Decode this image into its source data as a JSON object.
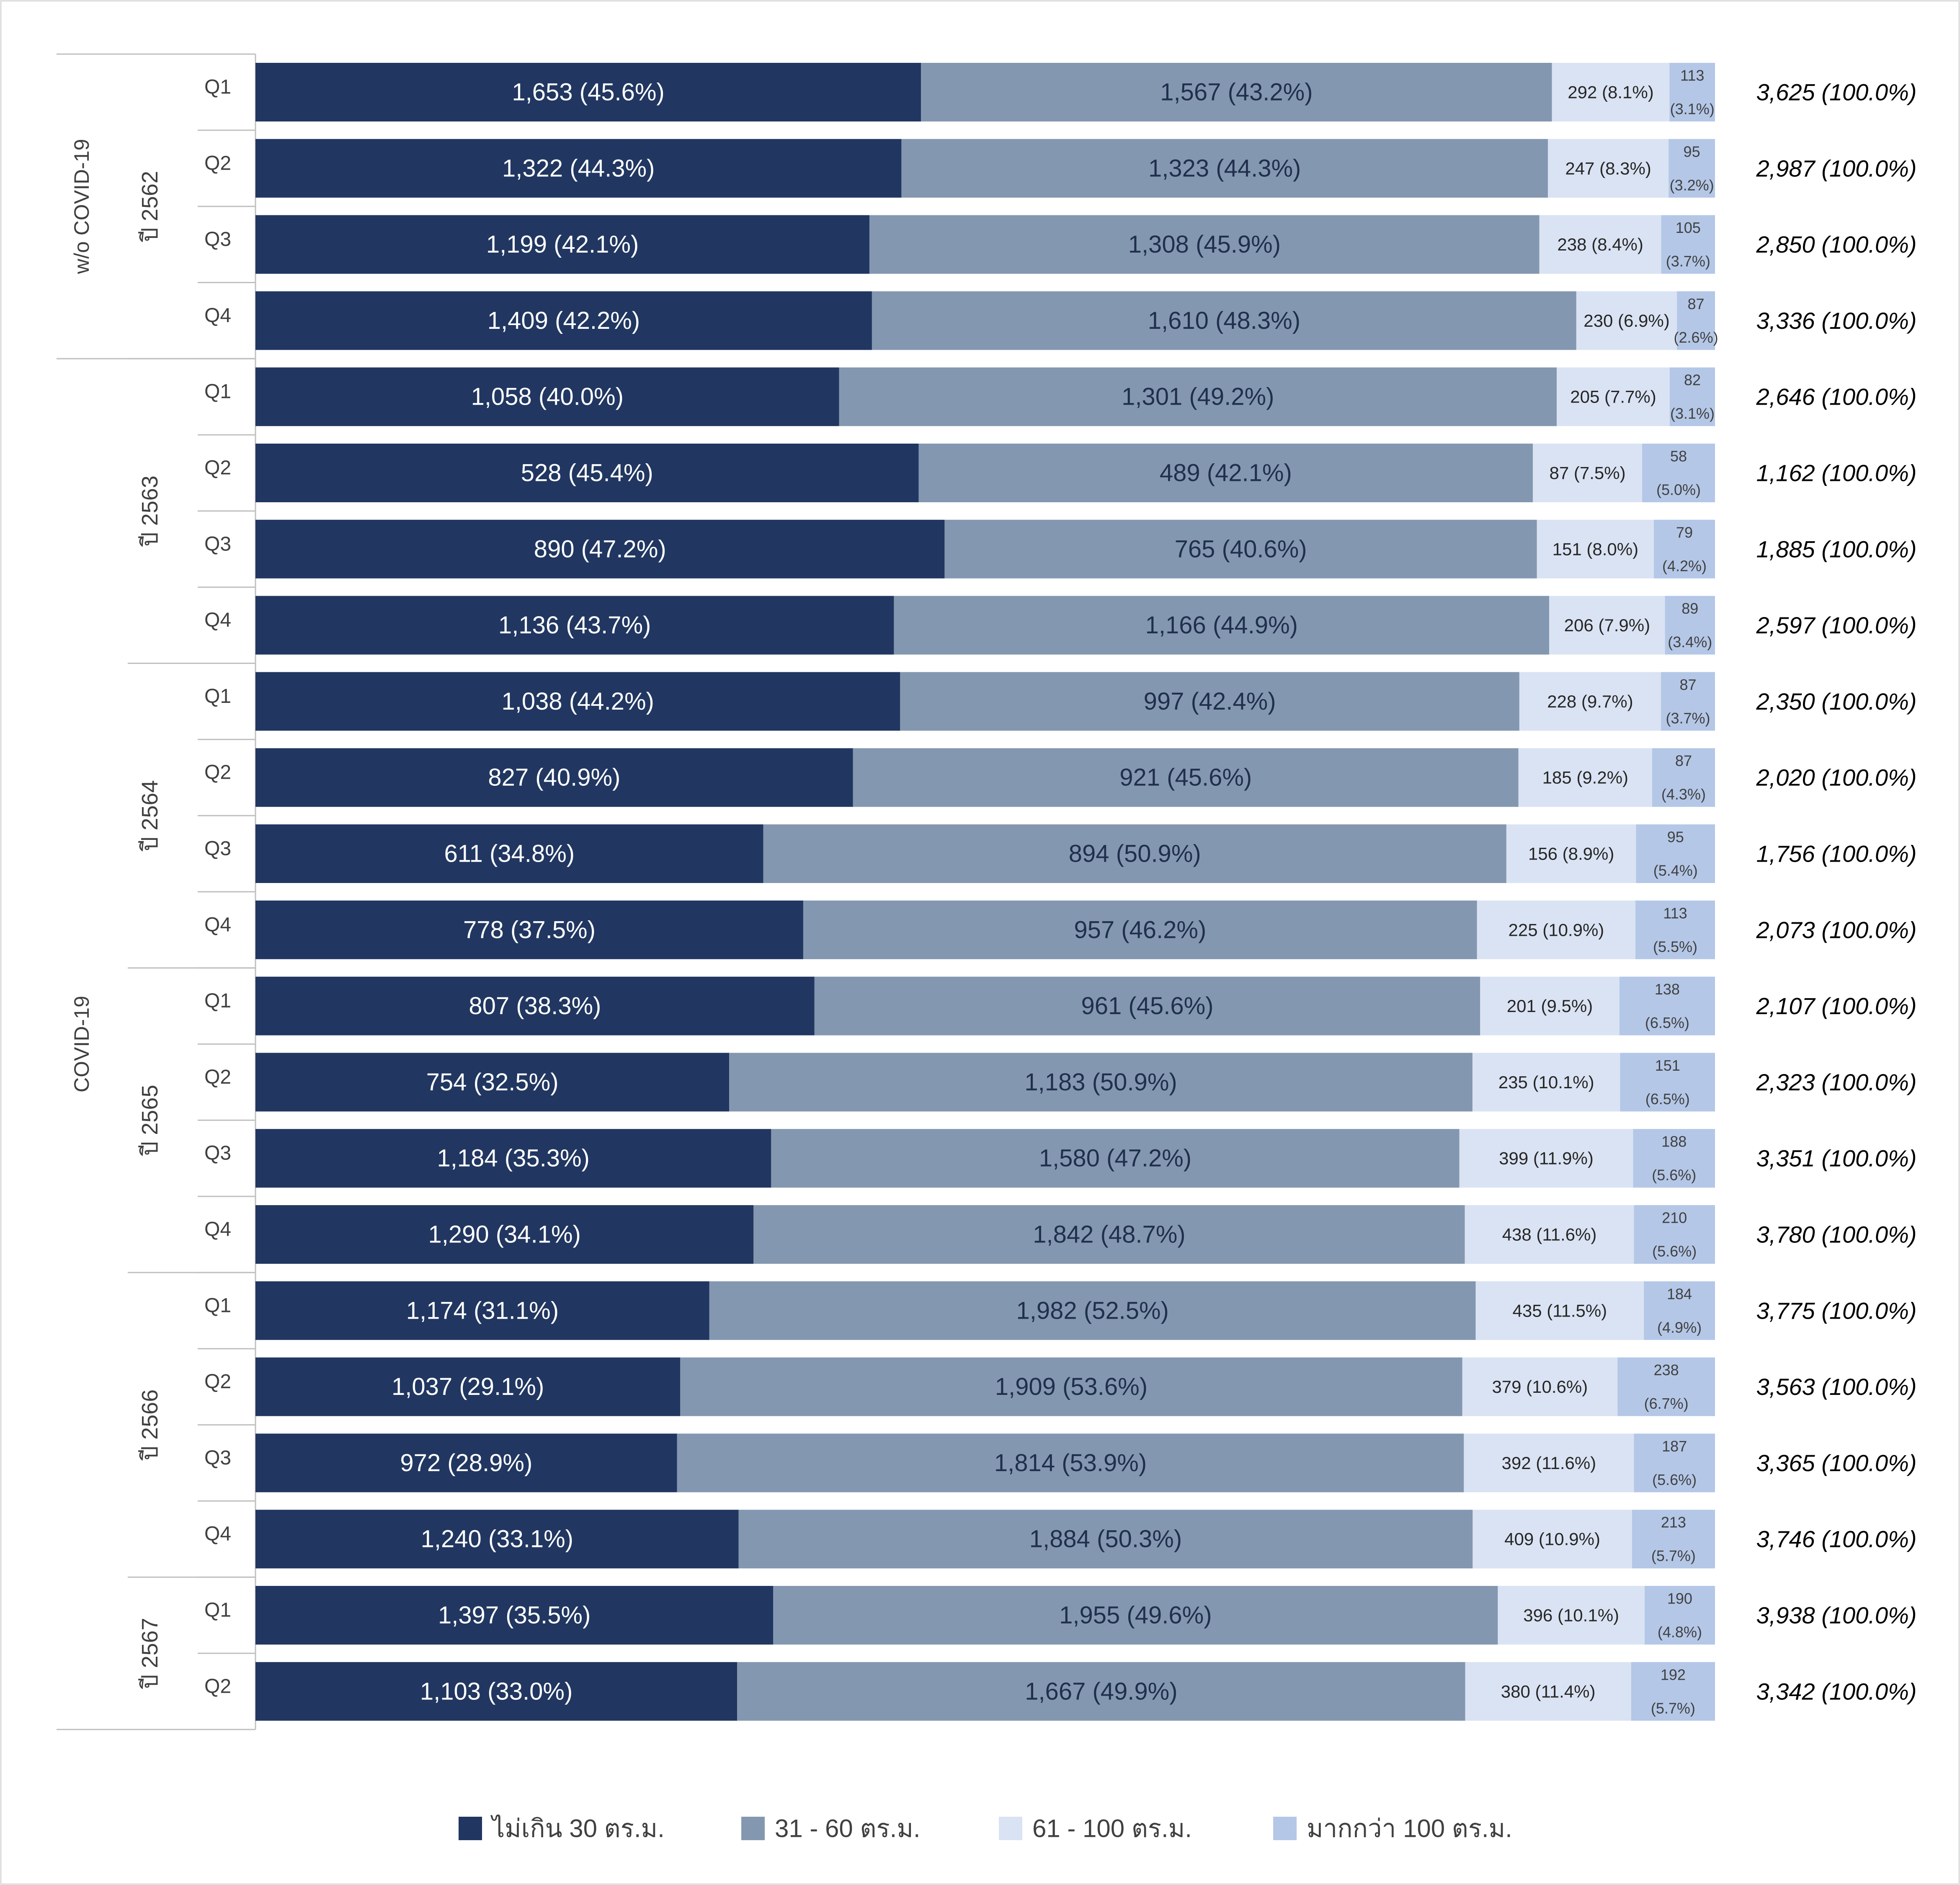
{
  "chart_data": {
    "type": "bar",
    "orientation": "horizontal",
    "stacked": true,
    "title": "",
    "xlabel": "",
    "ylabel": "",
    "grid": false,
    "legend_position": "bottom",
    "groups": [
      {
        "label": "w/o COVID-19",
        "rows": 4
      },
      {
        "label": "COVID-19",
        "rows": 18
      }
    ],
    "years": [
      {
        "label": "ปี 2562",
        "rows": 4
      },
      {
        "label": "ปี 2563",
        "rows": 4
      },
      {
        "label": "ปี 2564",
        "rows": 4
      },
      {
        "label": "ปี 2565",
        "rows": 4
      },
      {
        "label": "ปี 2566",
        "rows": 4
      },
      {
        "label": "ปี 2567",
        "rows": 2
      }
    ],
    "categories": [
      "Q1",
      "Q2",
      "Q3",
      "Q4",
      "Q1",
      "Q2",
      "Q3",
      "Q4",
      "Q1",
      "Q2",
      "Q3",
      "Q4",
      "Q1",
      "Q2",
      "Q3",
      "Q4",
      "Q1",
      "Q2",
      "Q3",
      "Q4",
      "Q1",
      "Q2"
    ],
    "series": [
      {
        "name": "ไม่เกิน 30 ตร.ม.",
        "color": "#213761",
        "values": [
          1653,
          1322,
          1199,
          1409,
          1058,
          528,
          890,
          1136,
          1038,
          827,
          611,
          778,
          807,
          754,
          1184,
          1290,
          1174,
          1037,
          972,
          1240,
          1397,
          1103
        ],
        "labels": [
          "1,653  (45.6%)",
          "1,322  (44.3%)",
          "1,199  (42.1%)",
          "1,409  (42.2%)",
          "1,058  (40.0%)",
          "528  (45.4%)",
          "890  (47.2%)",
          "1,136  (43.7%)",
          "1,038  (44.2%)",
          "827  (40.9%)",
          "611  (34.8%)",
          "778  (37.5%)",
          "807  (38.3%)",
          "754  (32.5%)",
          "1,184  (35.3%)",
          "1,290  (34.1%)",
          "1,174  (31.1%)",
          "1,037  (29.1%)",
          "972  (28.9%)",
          "1,240  (33.1%)",
          "1,397  (35.5%)",
          "1,103  (33.0%)"
        ]
      },
      {
        "name": "31 - 60 ตร.ม.",
        "color": "#8497b0",
        "values": [
          1567,
          1323,
          1308,
          1610,
          1301,
          489,
          765,
          1166,
          997,
          921,
          894,
          957,
          961,
          1183,
          1580,
          1842,
          1982,
          1909,
          1814,
          1884,
          1955,
          1667
        ],
        "labels": [
          "1,567  (43.2%)",
          "1,323  (44.3%)",
          "1,308  (45.9%)",
          "1,610  (48.3%)",
          "1,301  (49.2%)",
          "489  (42.1%)",
          "765  (40.6%)",
          "1,166  (44.9%)",
          "997  (42.4%)",
          "921  (45.6%)",
          "894  (50.9%)",
          "957  (46.2%)",
          "961  (45.6%)",
          "1,183  (50.9%)",
          "1,580  (47.2%)",
          "1,842  (48.7%)",
          "1,982  (52.5%)",
          "1,909  (53.6%)",
          "1,814  (53.9%)",
          "1,884  (50.3%)",
          "1,955  (49.6%)",
          "1,667  (49.9%)"
        ]
      },
      {
        "name": "61 - 100 ตร.ม.",
        "color": "#dae3f3",
        "values": [
          292,
          247,
          238,
          230,
          205,
          87,
          151,
          206,
          228,
          185,
          156,
          225,
          201,
          235,
          399,
          438,
          435,
          379,
          392,
          409,
          396,
          380
        ],
        "labels": [
          "292  (8.1%)",
          "247  (8.3%)",
          "238  (8.4%)",
          "230  (6.9%)",
          "205  (7.7%)",
          "87  (7.5%)",
          "151  (8.0%)",
          "206  (7.9%)",
          "228  (9.7%)",
          "185  (9.2%)",
          "156  (8.9%)",
          "225  (10.9%)",
          "201  (9.5%)",
          "235  (10.1%)",
          "399  (11.9%)",
          "438  (11.6%)",
          "435  (11.5%)",
          "379  (10.6%)",
          "392  (11.6%)",
          "409  (10.9%)",
          "396  (10.1%)",
          "380  (11.4%)"
        ]
      },
      {
        "name": "มากกว่า 100  ตร.ม.",
        "color": "#b4c7e7",
        "values": [
          113,
          95,
          105,
          87,
          82,
          58,
          79,
          89,
          87,
          87,
          95,
          113,
          138,
          151,
          188,
          210,
          184,
          238,
          187,
          213,
          190,
          192
        ],
        "labels": [
          "113",
          "95",
          "105",
          "87",
          "82",
          "58",
          "79",
          "89",
          "87",
          "87",
          "95",
          "113",
          "138",
          "151",
          "188",
          "210",
          "184",
          "238",
          "187",
          "213",
          "190",
          "192"
        ],
        "pct": [
          "(3.1%)",
          "(3.2%)",
          "(3.7%)",
          "(2.6%)",
          "(3.1%)",
          "(5.0%)",
          "(4.2%)",
          "(3.4%)",
          "(3.7%)",
          "(4.3%)",
          "(5.4%)",
          "(5.5%)",
          "(6.5%)",
          "(6.5%)",
          "(5.6%)",
          "(5.6%)",
          "(4.9%)",
          "(6.7%)",
          "(5.6%)",
          "(5.7%)",
          "(4.8%)",
          "(5.7%)"
        ]
      }
    ],
    "totals": [
      3625,
      2987,
      2850,
      3336,
      2646,
      1162,
      1885,
      2597,
      2350,
      2020,
      1756,
      2073,
      2107,
      2323,
      3351,
      3780,
      3775,
      3563,
      3365,
      3746,
      3938,
      3342
    ],
    "total_labels": [
      "3,625  (100.0%)",
      "2,987  (100.0%)",
      "2,850  (100.0%)",
      "3,336  (100.0%)",
      "2,646  (100.0%)",
      "1,162  (100.0%)",
      "1,885  (100.0%)",
      "2,597  (100.0%)",
      "2,350  (100.0%)",
      "2,020  (100.0%)",
      "1,756  (100.0%)",
      "2,073  (100.0%)",
      "2,107  (100.0%)",
      "2,323  (100.0%)",
      "3,351  (100.0%)",
      "3,780  (100.0%)",
      "3,775  (100.0%)",
      "3,563  (100.0%)",
      "3,365  (100.0%)",
      "3,746  (100.0%)",
      "3,938  (100.0%)",
      "3,342  (100.0%)"
    ]
  }
}
